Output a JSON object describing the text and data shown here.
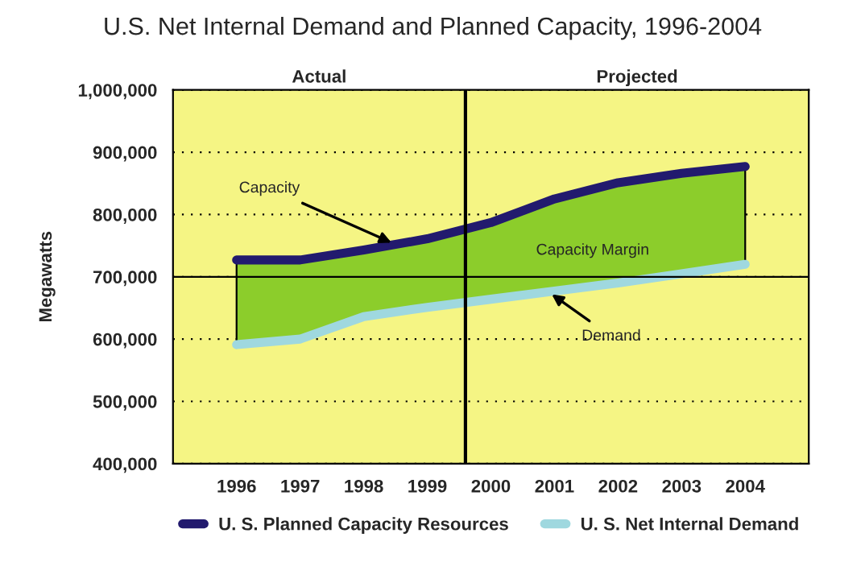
{
  "chart_data": {
    "type": "line",
    "title": "U.S. Net Internal Demand and Planned Capacity, 1996-2004",
    "ylabel": "Megawatts",
    "x": [
      1996,
      1997,
      1998,
      1999,
      2000,
      2001,
      2002,
      2003,
      2004
    ],
    "series": [
      {
        "name": "U. S. Planned Capacity Resources",
        "color": "#221a6e",
        "values": [
          727000,
          727000,
          743000,
          761000,
          787000,
          825000,
          851000,
          866000,
          877000
        ],
        "lower": [
          591000,
          600000,
          636000,
          651000,
          664000,
          677000,
          690000,
          705000,
          720000
        ],
        "upper": [
          727000,
          727000,
          743000,
          761000,
          787000,
          825000,
          851000,
          866000,
          877000
        ]
      },
      {
        "name": "U. S. Net Internal Demand",
        "color": "#9fd8df",
        "values": [
          591000,
          600000,
          636000,
          651000,
          664000,
          677000,
          690000,
          705000,
          720000
        ]
      }
    ],
    "xlim": [
      1995,
      2005
    ],
    "xticks": [
      1996,
      1997,
      1998,
      1999,
      2000,
      2001,
      2002,
      2003,
      2004
    ],
    "ylim": [
      400000,
      1000000
    ],
    "yticks": [
      {
        "value": 400000,
        "label": "400,000"
      },
      {
        "value": 500000,
        "label": "500,000"
      },
      {
        "value": 600000,
        "label": "600,000"
      },
      {
        "value": 700000,
        "label": "700,000"
      },
      {
        "value": 800000,
        "label": "800,000"
      },
      {
        "value": 900000,
        "label": "900,000"
      },
      {
        "value": 1000000,
        "label": "1,000,000"
      }
    ],
    "ref_lines": [
      {
        "axis": "x",
        "value": 1999.6,
        "color": "#000000"
      },
      {
        "axis": "y",
        "value": 700000,
        "color": "#000000"
      }
    ],
    "bands": [
      {
        "axis": "x",
        "from": 1995,
        "to": 1999.6,
        "label": "Actual",
        "color": "#f5f584"
      },
      {
        "axis": "x",
        "from": 1999.6,
        "to": 2005,
        "label": "Projected",
        "color": "#f5f584"
      }
    ],
    "annotations": [
      {
        "text": "Capacity",
        "x": 1998.5,
        "y": 752000
      },
      "Capacity Margin",
      {
        "text": "Demand",
        "x": 2000.9,
        "y": 676000
      }
    ],
    "grid": "y",
    "legend": "bottom",
    "marker": "none",
    "line_style": "solid"
  }
}
